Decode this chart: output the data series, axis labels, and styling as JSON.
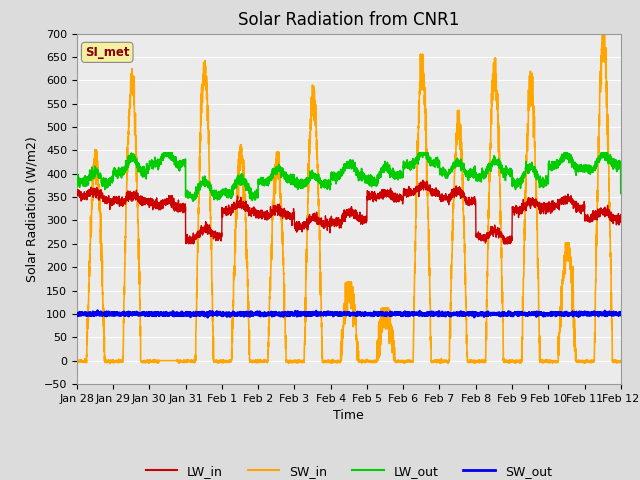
{
  "title": "Solar Radiation from CNR1",
  "xlabel": "Time",
  "ylabel": "Solar Radiation (W/m2)",
  "ylim": [
    -50,
    700
  ],
  "xlim": [
    0,
    15
  ],
  "x_tick_labels": [
    "Jan 28",
    "Jan 29",
    "Jan 30",
    "Jan 31",
    "Feb 1",
    "Feb 2",
    "Feb 3",
    "Feb 4",
    "Feb 5",
    "Feb 6",
    "Feb 7",
    "Feb 8",
    "Feb 9",
    "Feb 10",
    "Feb 11Feb 12",
    ""
  ],
  "x_tick_positions": [
    0,
    1,
    2,
    3,
    4,
    5,
    6,
    7,
    8,
    9,
    10,
    11,
    12,
    13,
    14,
    15
  ],
  "x_tick_labels2": [
    "Jan 28",
    "Jan 29",
    "Jan 30",
    "Jan 31",
    "Feb 1",
    "Feb 2",
    "Feb 3",
    "Feb 4",
    "Feb 5",
    "Feb 6",
    "Feb 7",
    "Feb 8",
    "Feb 9",
    "Feb 10",
    "Feb 11",
    "Feb 12"
  ],
  "legend_label": "SI_met",
  "legend_box_color": "#F5F0A0",
  "legend_text_color": "#8B0000",
  "fig_bg_color": "#DCDCDC",
  "plot_bg_color": "#EBEBEB",
  "grid_color": "#FFFFFF",
  "colors": {
    "LW_in": "#CC0000",
    "SW_in": "#FFA500",
    "LW_out": "#00CC00",
    "SW_out": "#0000EE"
  },
  "linewidths": {
    "LW_in": 1.0,
    "SW_in": 1.2,
    "LW_out": 1.2,
    "SW_out": 1.8
  },
  "title_fontsize": 12,
  "axis_label_fontsize": 9,
  "tick_fontsize": 8
}
